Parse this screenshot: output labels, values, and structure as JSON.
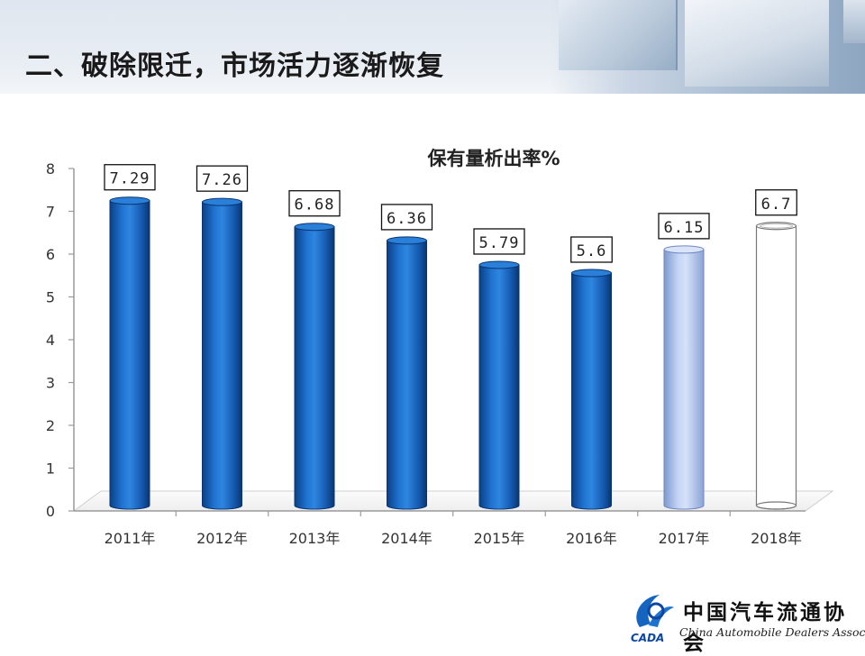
{
  "slide": {
    "title": "二、破除限迁，市场活力逐渐恢复"
  },
  "logo": {
    "cn_name": "中国汽车流通协会",
    "en_name": "China Automobile Dealers Association",
    "mark_text": "CADA"
  },
  "colors": {
    "bar_actual": "#1565c0",
    "bar_estimate": "#a9c0ec",
    "bar_forecast": "#ffffff"
  },
  "chart_data": {
    "type": "bar",
    "title": "保有量析出率%",
    "categories": [
      "2011年",
      "2012年",
      "2013年",
      "2014年",
      "2015年",
      "2016年",
      "2017年",
      "2018年"
    ],
    "values": [
      7.29,
      7.26,
      6.68,
      6.36,
      5.79,
      5.6,
      6.15,
      6.7
    ],
    "data_labels": [
      "7.29",
      "7.26",
      "6.68",
      "6.36",
      "5.79",
      "5.6",
      "6.15",
      "6.7"
    ],
    "bar_styles": [
      "actual",
      "actual",
      "actual",
      "actual",
      "actual",
      "actual",
      "estimate",
      "forecast"
    ],
    "ylim": [
      0,
      8
    ],
    "yticks": [
      "0",
      "1",
      "2",
      "3",
      "4",
      "5",
      "6",
      "7",
      "8"
    ],
    "xlabel": "",
    "ylabel": "",
    "grid": false,
    "legend": "none"
  }
}
